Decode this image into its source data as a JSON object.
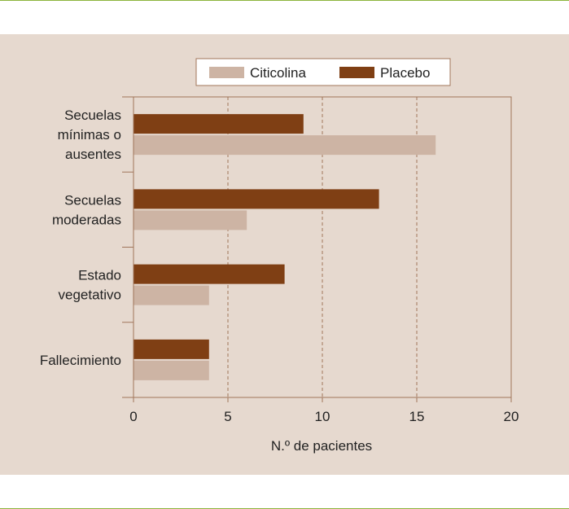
{
  "colors": {
    "citicolina": "#cdb4a4",
    "placebo": "#7f3f14",
    "panel": "#e6d9cf",
    "rule": "#8cb43c",
    "grid": "#a0755a"
  },
  "chart_data": {
    "type": "bar",
    "orientation": "horizontal",
    "categories": [
      [
        "Secuelas",
        "mínimas o",
        "ausentes"
      ],
      [
        "Secuelas",
        "moderadas"
      ],
      [
        "Estado",
        "vegetativo"
      ],
      [
        "Fallecimiento"
      ]
    ],
    "series": [
      {
        "name": "Citicolina",
        "values": [
          16,
          6,
          4,
          4
        ]
      },
      {
        "name": "Placebo",
        "values": [
          9,
          13,
          8,
          4
        ]
      }
    ],
    "xlabel": "N.º de pacientes",
    "xlim": [
      0,
      20
    ],
    "xticks": [
      0,
      5,
      10,
      15,
      20
    ],
    "grid": "vertical dashed",
    "legend": "top"
  }
}
